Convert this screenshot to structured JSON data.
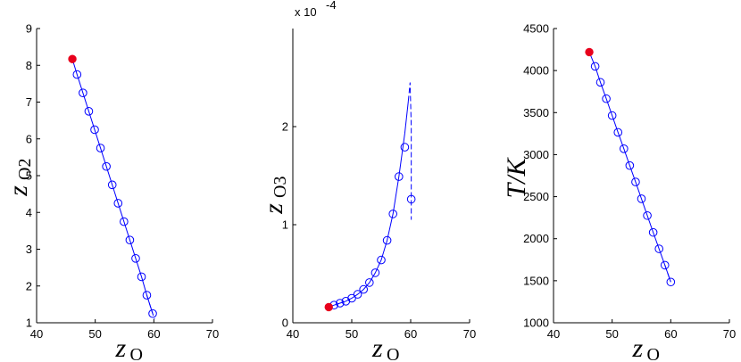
{
  "chart_data": [
    {
      "type": "line",
      "xlabel": "z",
      "xlabel_sub": "O",
      "ylabel": "z",
      "ylabel_sub": "O2",
      "xlim": [
        40,
        70
      ],
      "ylim": [
        1,
        9
      ],
      "xticks": [
        "40",
        "50",
        "60",
        "70"
      ],
      "yticks": [
        "1",
        "2",
        "3",
        "4",
        "5",
        "6",
        "7",
        "8",
        "9"
      ],
      "x": [
        46.1,
        46.9,
        47.9,
        48.9,
        49.9,
        50.9,
        51.9,
        52.9,
        53.9,
        54.9,
        55.9,
        56.9,
        57.9,
        58.8,
        59.8
      ],
      "y": [
        8.17,
        7.75,
        7.25,
        6.75,
        6.25,
        5.75,
        5.25,
        4.75,
        4.25,
        3.75,
        3.25,
        2.75,
        2.25,
        1.75,
        1.25
      ],
      "dashed_tail": {
        "x": [
          58.8,
          60.1
        ],
        "y": [
          1.75,
          1.1
        ]
      },
      "start_point": {
        "x": 46.1,
        "y": 8.17
      },
      "series_color": "#0000ff",
      "marker_color": "#0000ff",
      "start_color": "#e8001c"
    },
    {
      "type": "line",
      "xlabel": "z",
      "xlabel_sub": "O",
      "ylabel": "z",
      "ylabel_sub": "O3",
      "multiplier": "x 10",
      "multiplier_exp": "-4",
      "xlim": [
        40,
        70
      ],
      "ylim": [
        0,
        0.0003
      ],
      "xticks": [
        "40",
        "50",
        "60",
        "70"
      ],
      "yticks": [
        "0",
        "1",
        "2"
      ],
      "ytick_values": [
        0,
        0.0001,
        0.0002
      ],
      "x": [
        46.1,
        47.0,
        48.0,
        49.0,
        50.0,
        51.0,
        52.0,
        53.0,
        54.0,
        55.0,
        56.0,
        57.0,
        58.0,
        59.0,
        60.1
      ],
      "y": [
        1.6e-05,
        1.8e-05,
        2e-05,
        2.2e-05,
        2.5e-05,
        2.9e-05,
        3.4e-05,
        4.1e-05,
        5.1e-05,
        6.4e-05,
        8.4e-05,
        0.000111,
        0.000149,
        0.000179,
        0.000126
      ],
      "solid_curve": {
        "x": [
          46.1,
          47,
          48,
          49,
          50,
          51,
          52,
          53,
          54,
          55,
          56,
          57,
          58,
          59,
          59.6
        ],
        "y": [
          1.6e-05,
          1.8e-05,
          2e-05,
          2.2e-05,
          2.5e-05,
          2.9e-05,
          3.4e-05,
          4.1e-05,
          5.1e-05,
          6.4e-05,
          8.4e-05,
          0.000111,
          0.000149,
          0.000193,
          0.000226
        ]
      },
      "dashed_tail": {
        "x": [
          59.6,
          59.9,
          60.1,
          60.1
        ],
        "y": [
          0.000226,
          0.000245,
          0.0002,
          0.000105
        ]
      },
      "start_point": {
        "x": 46.1,
        "y": 1.6e-05
      },
      "series_color": "#0000ff",
      "marker_color": "#0000ff",
      "start_color": "#e8001c"
    },
    {
      "type": "line",
      "xlabel": "z",
      "xlabel_sub": "O",
      "ylabel": "T/K",
      "ylabel_sub": "",
      "xlim": [
        40,
        70
      ],
      "ylim": [
        1000,
        4500
      ],
      "xticks": [
        "40",
        "50",
        "60",
        "70"
      ],
      "yticks": [
        "1000",
        "1500",
        "2000",
        "2500",
        "3000",
        "3500",
        "4000",
        "4500"
      ],
      "x": [
        46.1,
        47.1,
        48.0,
        49.0,
        50.0,
        51.0,
        52.0,
        53.0,
        54.0,
        55.0,
        56.0,
        57.0,
        58.0,
        59.0,
        60.0
      ],
      "y": [
        4220,
        4050,
        3860,
        3665,
        3465,
        3265,
        3070,
        2870,
        2675,
        2475,
        2275,
        2075,
        1880,
        1685,
        1485
      ],
      "start_point": {
        "x": 46.1,
        "y": 4220
      },
      "series_color": "#0000ff",
      "marker_color": "#0000ff",
      "start_color": "#e8001c"
    }
  ]
}
